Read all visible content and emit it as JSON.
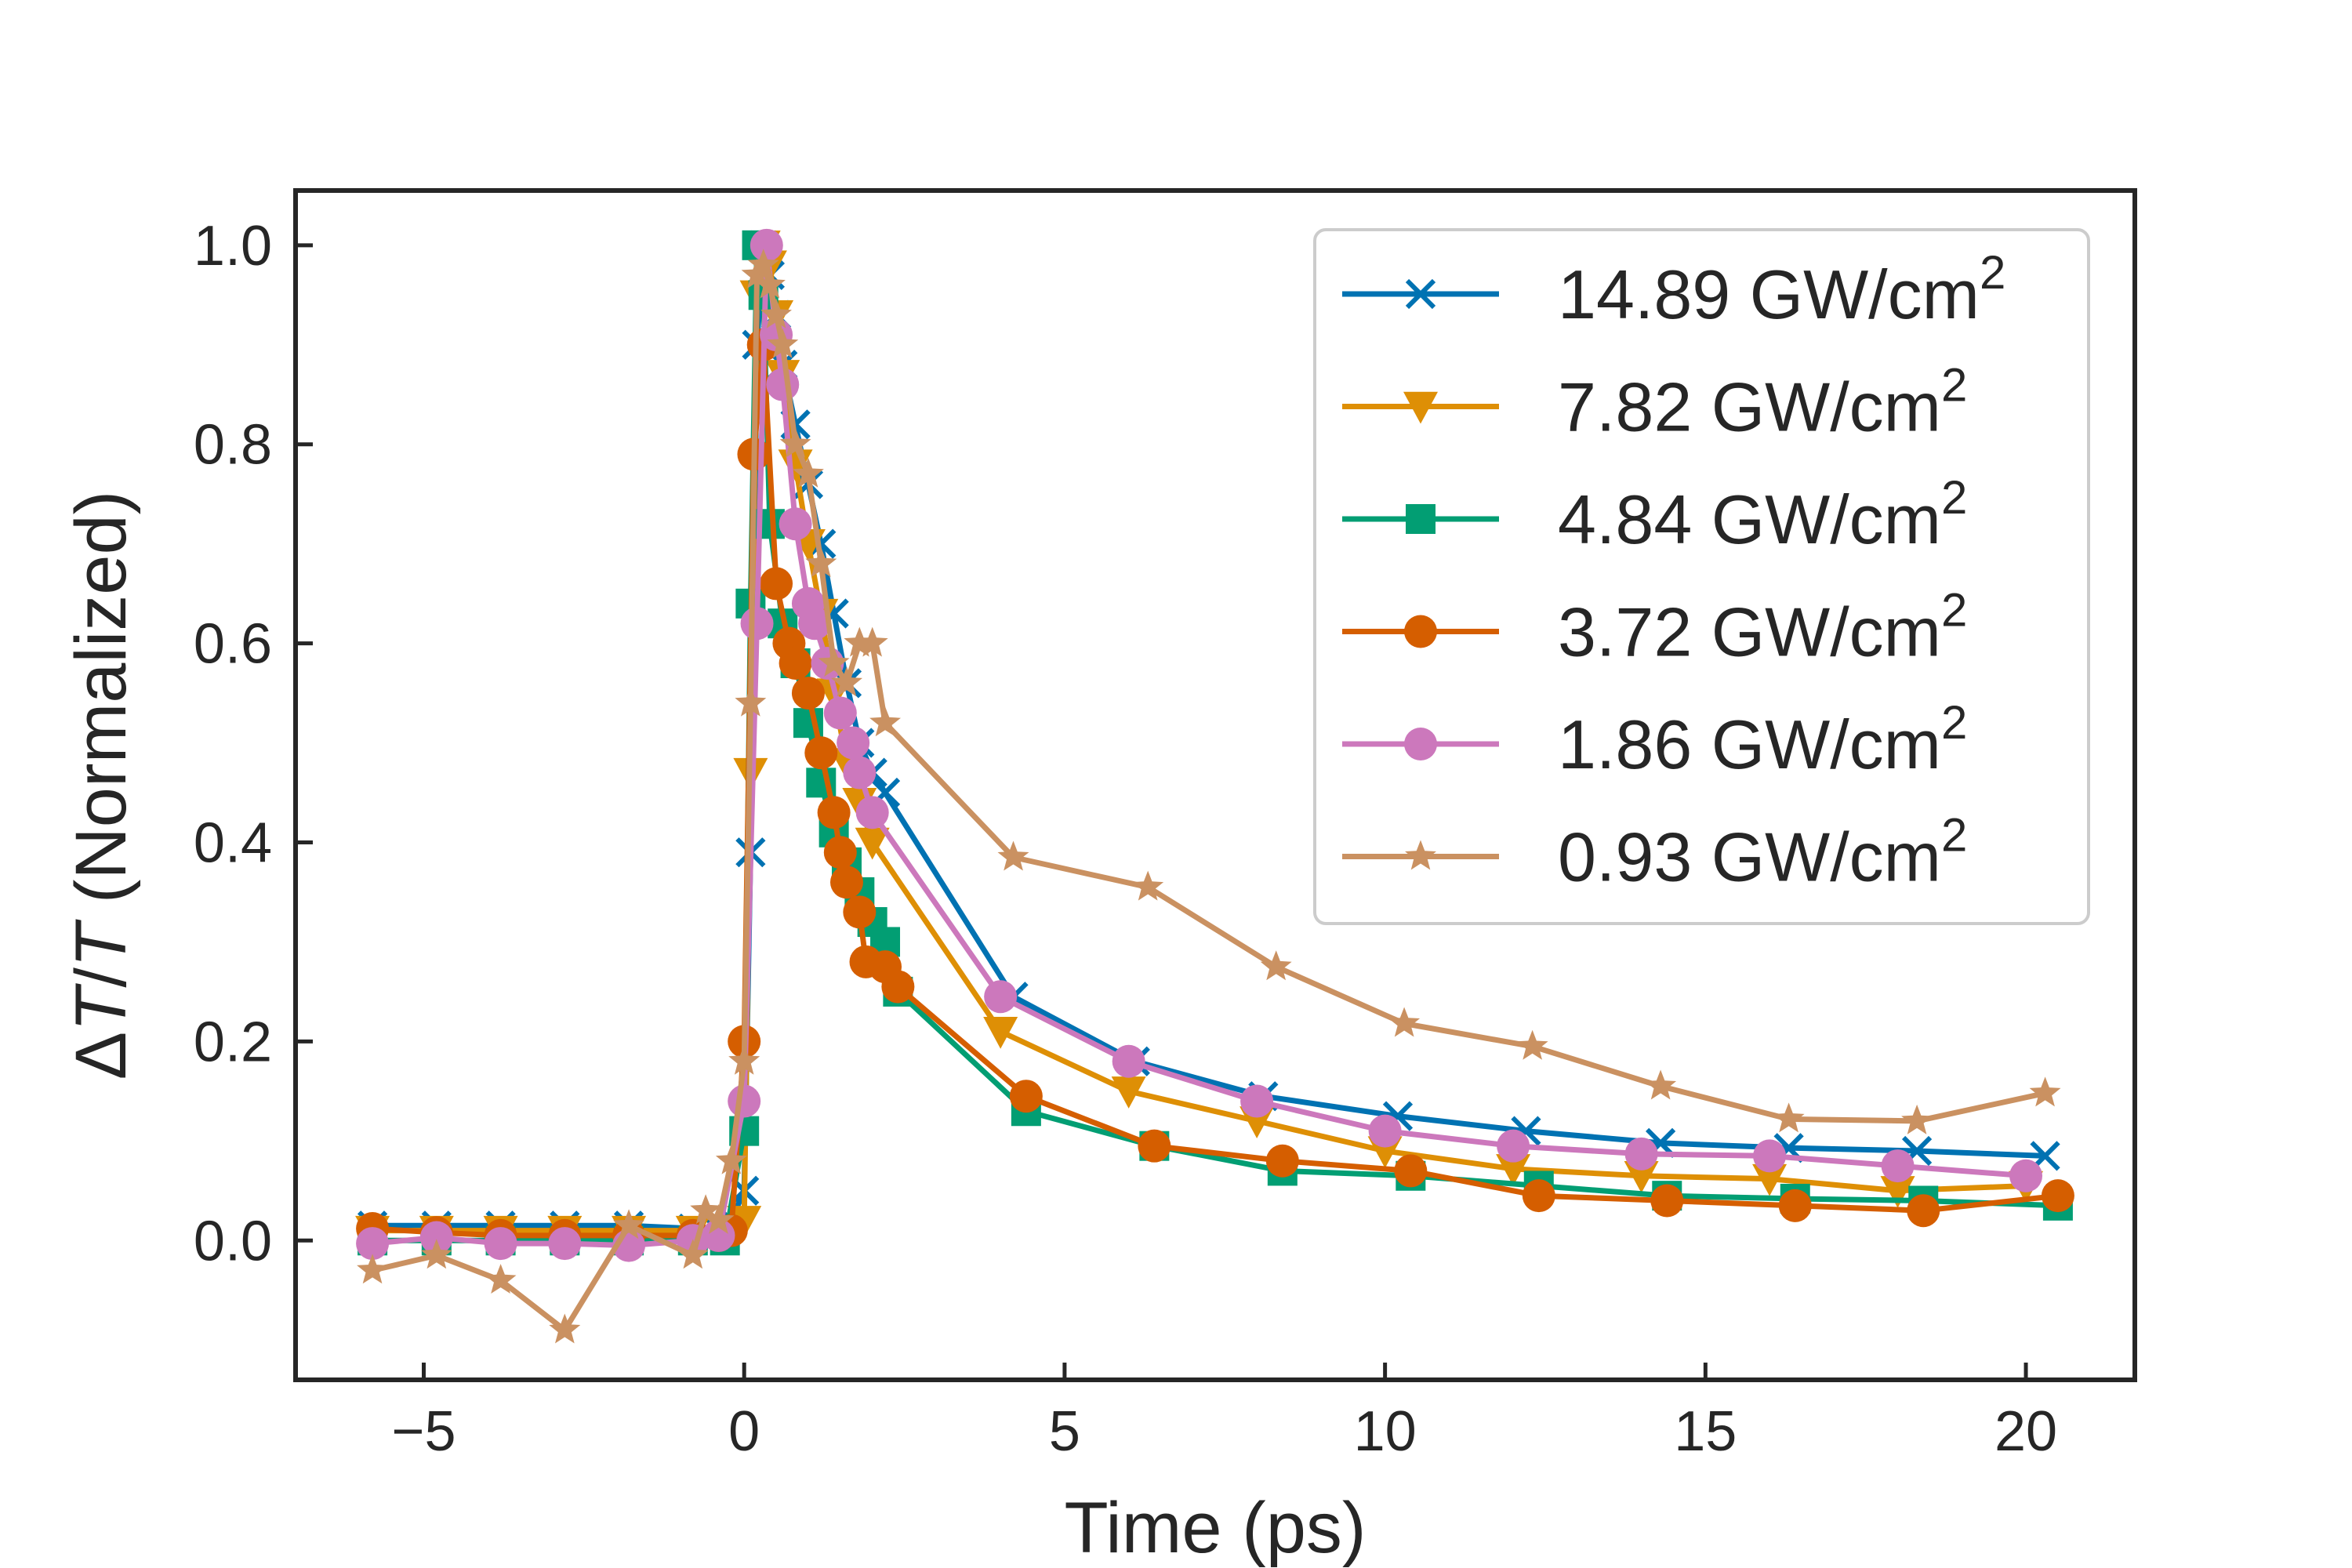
{
  "chart_data": {
    "type": "line",
    "xlabel": "Time (ps)",
    "ylabel": {
      "delta": "Δ",
      "T1": "T",
      "slash": "/",
      "T2": "T",
      "rest": " (Normalized)"
    },
    "xlim": [
      -7.0,
      21.7
    ],
    "ylim": [
      -0.14,
      1.055
    ],
    "xticks": [
      -5,
      0,
      5,
      10,
      15,
      20
    ],
    "xtick_labels": [
      "−5",
      "0",
      "5",
      "10",
      "15",
      "20"
    ],
    "yticks": [
      0.0,
      0.2,
      0.4,
      0.6,
      0.8,
      1.0
    ],
    "ytick_labels": [
      "0.0",
      "0.2",
      "0.4",
      "0.6",
      "0.8",
      "1.0"
    ],
    "grid": false,
    "legend_position": "top-right",
    "series": [
      {
        "name": "14.89 GW/cm",
        "sup": "2",
        "color": "#0072b2",
        "marker": "x",
        "x": [
          -5.8,
          -4.8,
          -3.8,
          -2.8,
          -1.8,
          -0.8,
          -0.4,
          -0.2,
          0.0,
          0.1,
          0.2,
          0.3,
          0.4,
          0.5,
          0.6,
          0.8,
          1.0,
          1.2,
          1.4,
          1.6,
          1.8,
          2.0,
          2.2,
          4.2,
          6.1,
          8.1,
          10.2,
          12.2,
          14.3,
          16.3,
          18.3,
          20.3
        ],
        "y": [
          0.015,
          0.015,
          0.015,
          0.015,
          0.015,
          0.012,
          0.01,
          0.02,
          0.05,
          0.39,
          0.9,
          1.0,
          0.97,
          0.93,
          0.88,
          0.82,
          0.76,
          0.7,
          0.63,
          0.56,
          0.5,
          0.47,
          0.45,
          0.245,
          0.18,
          0.145,
          0.125,
          0.11,
          0.098,
          0.093,
          0.09,
          0.085
        ]
      },
      {
        "name": "7.82 GW/cm",
        "sup": "2",
        "color": "#de8f05",
        "marker": "v",
        "x": [
          -5.8,
          -4.8,
          -3.8,
          -2.8,
          -1.8,
          -0.8,
          -0.3,
          0.0,
          0.1,
          0.2,
          0.3,
          0.4,
          0.5,
          0.6,
          0.8,
          1.0,
          1.2,
          1.4,
          1.6,
          1.8,
          2.0,
          4.0,
          6.0,
          8.0,
          10.0,
          12.0,
          14.0,
          16.0,
          18.0,
          20.0
        ],
        "y": [
          0.01,
          0.01,
          0.01,
          0.01,
          0.01,
          0.01,
          0.01,
          0.02,
          0.47,
          0.95,
          1.0,
          0.98,
          0.93,
          0.87,
          0.78,
          0.7,
          0.63,
          0.55,
          0.48,
          0.44,
          0.4,
          0.21,
          0.15,
          0.12,
          0.09,
          0.072,
          0.065,
          0.062,
          0.05,
          0.055
        ]
      },
      {
        "name": "4.84 GW/cm",
        "sup": "2",
        "color": "#029e73",
        "marker": "s",
        "x": [
          -5.8,
          -4.8,
          -3.8,
          -2.8,
          -1.8,
          -0.8,
          -0.3,
          0.0,
          0.1,
          0.2,
          0.3,
          0.4,
          0.6,
          0.8,
          1.0,
          1.2,
          1.4,
          1.6,
          1.8,
          2.0,
          2.2,
          2.4,
          4.4,
          6.4,
          8.4,
          10.4,
          12.4,
          14.4,
          16.4,
          18.4,
          20.5
        ],
        "y": [
          0.0,
          0.0,
          0.0,
          0.0,
          0.0,
          0.0,
          0.0,
          0.11,
          0.64,
          1.0,
          0.95,
          0.72,
          0.62,
          0.58,
          0.52,
          0.46,
          0.41,
          0.38,
          0.35,
          0.32,
          0.3,
          0.25,
          0.13,
          0.095,
          0.07,
          0.065,
          0.055,
          0.045,
          0.042,
          0.04,
          0.035
        ]
      },
      {
        "name": "3.72 GW/cm",
        "sup": "2",
        "color": "#d55e00",
        "marker": "o",
        "x": [
          -5.8,
          -4.8,
          -3.8,
          -2.8,
          -1.8,
          -0.8,
          -0.4,
          -0.2,
          0.0,
          0.15,
          0.3,
          0.5,
          0.7,
          0.8,
          1.0,
          1.2,
          1.4,
          1.5,
          1.6,
          1.8,
          1.9,
          2.2,
          2.4,
          4.4,
          6.4,
          8.4,
          10.4,
          12.4,
          14.4,
          16.4,
          18.4,
          20.5
        ],
        "y": [
          0.012,
          0.008,
          0.005,
          0.005,
          0.005,
          0.005,
          0.005,
          0.01,
          0.2,
          0.79,
          0.9,
          0.66,
          0.6,
          0.58,
          0.55,
          0.49,
          0.43,
          0.39,
          0.36,
          0.33,
          0.28,
          0.275,
          0.255,
          0.145,
          0.095,
          0.08,
          0.07,
          0.045,
          0.04,
          0.035,
          0.03,
          0.045
        ]
      },
      {
        "name": "1.86 GW/cm",
        "sup": "2",
        "color": "#cc78bc",
        "marker": "o",
        "x": [
          -5.8,
          -4.8,
          -3.8,
          -2.8,
          -1.8,
          -0.8,
          -0.4,
          0.0,
          0.2,
          0.35,
          0.5,
          0.6,
          0.8,
          1.0,
          1.1,
          1.3,
          1.5,
          1.7,
          1.8,
          2.0,
          4.0,
          6.0,
          8.0,
          10.0,
          12.0,
          14.0,
          16.0,
          18.0,
          20.0
        ],
        "y": [
          -0.003,
          0.003,
          -0.003,
          -0.003,
          -0.005,
          0.0,
          0.005,
          0.14,
          0.62,
          1.0,
          0.91,
          0.86,
          0.72,
          0.64,
          0.62,
          0.58,
          0.53,
          0.5,
          0.47,
          0.43,
          0.245,
          0.18,
          0.14,
          0.11,
          0.095,
          0.087,
          0.085,
          0.075,
          0.065
        ]
      },
      {
        "name": "0.93 GW/cm",
        "sup": "2",
        "color": "#ca9161",
        "marker": "*",
        "x": [
          -5.8,
          -4.8,
          -3.8,
          -2.8,
          -1.8,
          -0.8,
          -0.6,
          -0.4,
          -0.2,
          0.0,
          0.1,
          0.2,
          0.3,
          0.4,
          0.5,
          0.6,
          0.8,
          1.0,
          1.2,
          1.4,
          1.6,
          1.8,
          2.0,
          2.2,
          4.2,
          6.3,
          8.3,
          10.3,
          12.3,
          14.3,
          16.3,
          18.3,
          20.3
        ],
        "y": [
          -0.03,
          -0.015,
          -0.04,
          -0.09,
          0.015,
          -0.015,
          0.03,
          0.02,
          0.08,
          0.18,
          0.54,
          0.97,
          0.98,
          0.96,
          0.93,
          0.9,
          0.8,
          0.77,
          0.68,
          0.58,
          0.56,
          0.6,
          0.6,
          0.52,
          0.385,
          0.355,
          0.275,
          0.218,
          0.195,
          0.155,
          0.122,
          0.12,
          0.148
        ]
      }
    ]
  }
}
